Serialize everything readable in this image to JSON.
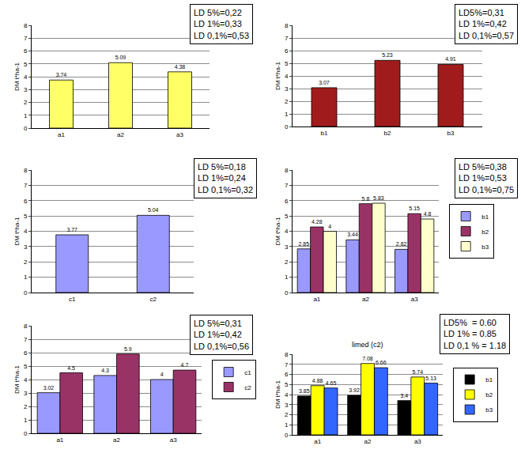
{
  "chart_data": [
    {
      "type": "bar",
      "ylabel": "DM t*ha-1",
      "categories": [
        "a1",
        "a2",
        "a3"
      ],
      "values": [
        3.74,
        5.09,
        4.38
      ],
      "color": "#ffff66",
      "ylim": [
        0,
        8
      ],
      "yticks": [
        0,
        1,
        2,
        3,
        4,
        5,
        6,
        7,
        8
      ],
      "grid": true,
      "data_labels": true,
      "annotations": [
        "LD 5%=0,22",
        "LD 1%=0,33",
        "LD 0,1%=0,53"
      ]
    },
    {
      "type": "bar",
      "ylabel": "DM t*ha-1",
      "categories": [
        "b1",
        "b2",
        "b3"
      ],
      "values": [
        3.07,
        5.23,
        4.91
      ],
      "color": "#a01c1c",
      "ylim": [
        0,
        8
      ],
      "yticks": [
        0,
        1,
        2,
        3,
        4,
        5,
        6,
        7,
        8
      ],
      "grid": true,
      "data_labels": true,
      "annotations": [
        "LD5%=0,31",
        "LD 1%=0,42",
        "LD 0,1%=0,57"
      ]
    },
    {
      "type": "bar",
      "ylabel": "DM t*ha-1",
      "categories": [
        "c1",
        "c2"
      ],
      "values": [
        3.77,
        5.04
      ],
      "color": "#9999ff",
      "ylim": [
        0,
        8
      ],
      "yticks": [
        0,
        1,
        2,
        3,
        4,
        5,
        6,
        7,
        8
      ],
      "grid": true,
      "data_labels": true,
      "annotations": [
        "LD 5%=0,18",
        "LD 1%=0,24",
        "LD 0,1%=0,32"
      ]
    },
    {
      "type": "bar",
      "ylabel": "DM t*ha-1",
      "categories": [
        "a1",
        "a2",
        "a3"
      ],
      "series": [
        {
          "name": "b1",
          "color": "#9999ff",
          "values": [
            2.85,
            3.44,
            2.82
          ]
        },
        {
          "name": "b2",
          "color": "#993366",
          "values": [
            4.28,
            5.8,
            5.15
          ]
        },
        {
          "name": "b3",
          "color": "#ffffcc",
          "values": [
            4,
            5.83,
            4.8
          ]
        }
      ],
      "ylim": [
        0,
        8
      ],
      "yticks": [
        0,
        1,
        2,
        3,
        4,
        5,
        6,
        7,
        8
      ],
      "grid": true,
      "data_labels": true,
      "legend": "right",
      "annotations": [
        "LD 5%=0,38",
        "LD 1%=0,53",
        "LD 0,1%=0,75"
      ]
    },
    {
      "type": "bar",
      "ylabel": "DM t*ha-1",
      "categories": [
        "a1",
        "a2",
        "a3"
      ],
      "series": [
        {
          "name": "c1",
          "color": "#9999ff",
          "values": [
            3.02,
            4.3,
            4
          ]
        },
        {
          "name": "c2",
          "color": "#993366",
          "values": [
            4.5,
            5.9,
            4.7
          ]
        }
      ],
      "ylim": [
        0,
        8
      ],
      "yticks": [
        0,
        1,
        2,
        3,
        4,
        5,
        6,
        7,
        8
      ],
      "grid": true,
      "data_labels": true,
      "legend": "right",
      "annotations": [
        "LD 5%=0,31",
        "LD 1%=0,42",
        "LD 0,1%=0,56"
      ]
    },
    {
      "type": "bar",
      "title": "limed (c2)",
      "ylabel": "DM t*ha-1",
      "categories": [
        "a1",
        "a2",
        "a3"
      ],
      "series": [
        {
          "name": "b1",
          "color": "#000000",
          "values": [
            3.85,
            3.92,
            3.4
          ]
        },
        {
          "name": "b2",
          "color": "#ffff00",
          "values": [
            4.88,
            7.08,
            5.74
          ]
        },
        {
          "name": "b3",
          "color": "#3366ff",
          "values": [
            4.65,
            6.66,
            5.13
          ]
        }
      ],
      "ylim": [
        0,
        8
      ],
      "yticks": [
        0,
        1,
        2,
        3,
        4,
        5,
        6,
        7,
        8
      ],
      "grid": true,
      "data_labels": true,
      "legend": "right",
      "annotations": [
        "LD5%  = 0.60",
        "LD 1% = 0.85",
        "LD 0,1 % = 1.18"
      ]
    }
  ]
}
